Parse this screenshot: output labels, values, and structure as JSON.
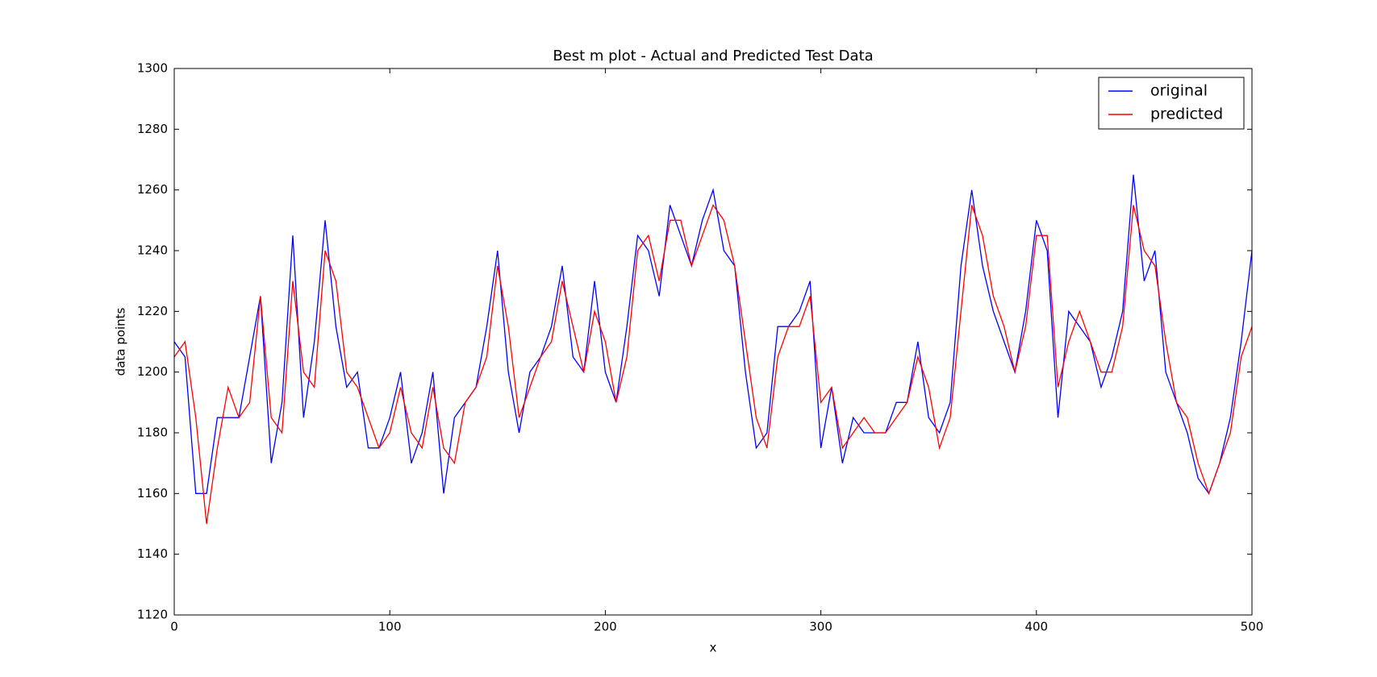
{
  "chart_data": {
    "type": "line",
    "title": "Best m plot - Actual and Predicted Test Data",
    "xlabel": "x",
    "ylabel": "data points",
    "x": [
      0,
      5,
      10,
      15,
      20,
      25,
      30,
      35,
      40,
      45,
      50,
      55,
      60,
      65,
      70,
      75,
      80,
      85,
      90,
      95,
      100,
      105,
      110,
      115,
      120,
      125,
      130,
      135,
      140,
      145,
      150,
      155,
      160,
      165,
      170,
      175,
      180,
      185,
      190,
      195,
      200,
      205,
      210,
      215,
      220,
      225,
      230,
      235,
      240,
      245,
      250,
      255,
      260,
      265,
      270,
      275,
      280,
      285,
      290,
      295,
      300,
      305,
      310,
      315,
      320,
      325,
      330,
      335,
      340,
      345,
      350,
      355,
      360,
      365,
      370,
      375,
      380,
      385,
      390,
      395,
      400,
      405,
      410,
      415,
      420,
      425,
      430,
      435,
      440,
      445,
      450,
      455,
      460,
      465,
      470,
      475,
      480,
      485,
      490,
      495,
      500
    ],
    "series": [
      {
        "name": "original",
        "color": "#0000ff",
        "values": [
          1210,
          1205,
          1160,
          1160,
          1185,
          1185,
          1185,
          1205,
          1225,
          1170,
          1190,
          1245,
          1185,
          1210,
          1250,
          1215,
          1195,
          1200,
          1175,
          1175,
          1185,
          1200,
          1170,
          1180,
          1200,
          1160,
          1185,
          1190,
          1195,
          1215,
          1240,
          1200,
          1180,
          1200,
          1205,
          1215,
          1235,
          1205,
          1200,
          1230,
          1200,
          1190,
          1215,
          1245,
          1240,
          1225,
          1255,
          1245,
          1235,
          1250,
          1260,
          1240,
          1235,
          1200,
          1175,
          1180,
          1215,
          1215,
          1220,
          1230,
          1175,
          1195,
          1170,
          1185,
          1180,
          1180,
          1180,
          1190,
          1190,
          1210,
          1185,
          1180,
          1190,
          1235,
          1260,
          1235,
          1220,
          1210,
          1200,
          1220,
          1250,
          1240,
          1185,
          1220,
          1215,
          1210,
          1195,
          1205,
          1220,
          1265,
          1230,
          1240,
          1200,
          1190,
          1180,
          1165,
          1160,
          1170,
          1185,
          1210,
          1240
        ]
      },
      {
        "name": "predicted",
        "color": "#ff0000",
        "values": [
          1205,
          1210,
          1185,
          1150,
          1175,
          1195,
          1185,
          1190,
          1225,
          1185,
          1180,
          1230,
          1200,
          1195,
          1240,
          1230,
          1200,
          1195,
          1185,
          1175,
          1180,
          1195,
          1180,
          1175,
          1195,
          1175,
          1170,
          1190,
          1195,
          1205,
          1235,
          1215,
          1185,
          1195,
          1205,
          1210,
          1230,
          1215,
          1200,
          1220,
          1210,
          1190,
          1205,
          1240,
          1245,
          1230,
          1250,
          1250,
          1235,
          1245,
          1255,
          1250,
          1235,
          1210,
          1185,
          1175,
          1205,
          1215,
          1215,
          1225,
          1190,
          1195,
          1175,
          1180,
          1185,
          1180,
          1180,
          1185,
          1190,
          1205,
          1195,
          1175,
          1185,
          1220,
          1255,
          1245,
          1225,
          1215,
          1200,
          1215,
          1245,
          1245,
          1195,
          1210,
          1220,
          1210,
          1200,
          1200,
          1215,
          1255,
          1240,
          1235,
          1210,
          1190,
          1185,
          1170,
          1160,
          1170,
          1180,
          1205,
          1215
        ]
      }
    ],
    "xlim": [
      0,
      500
    ],
    "xticks": [
      0,
      100,
      200,
      300,
      400,
      500
    ],
    "ylim": [
      1120,
      1300
    ],
    "yticks": [
      1120,
      1140,
      1160,
      1180,
      1200,
      1220,
      1240,
      1260,
      1280,
      1300
    ],
    "legend": "upper right"
  }
}
